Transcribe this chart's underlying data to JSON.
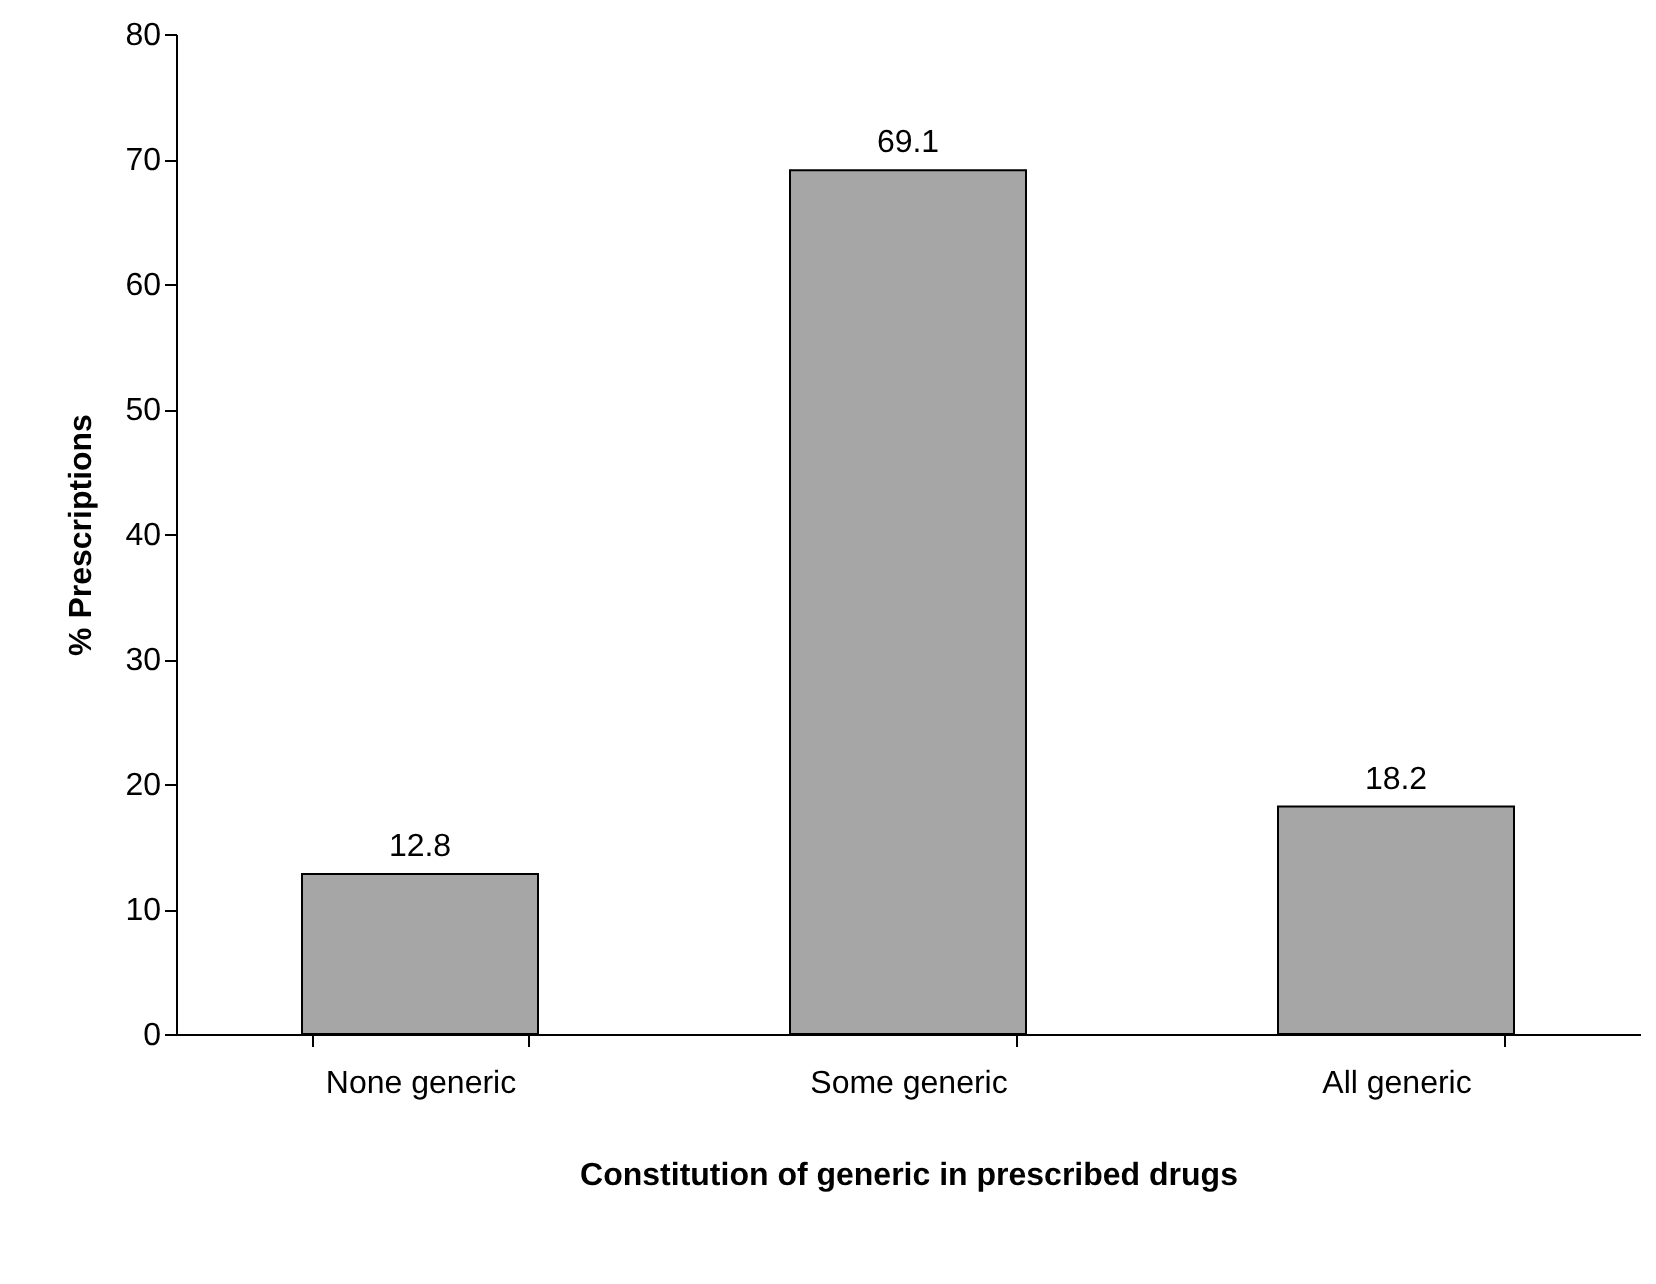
{
  "chart_data": {
    "type": "bar",
    "xlabel": "Constitution of generic in prescribed drugs",
    "ylabel": "% Prescriptions",
    "categories": [
      "None generic",
      "Some generic",
      "All generic"
    ],
    "values": [
      12.8,
      69.1,
      18.2
    ],
    "color": "#a6a6a6",
    "ylim": [
      0,
      80
    ],
    "yticks": [
      0,
      10,
      20,
      30,
      40,
      50,
      60,
      70,
      80
    ],
    "grid": false,
    "data_labels": true
  }
}
